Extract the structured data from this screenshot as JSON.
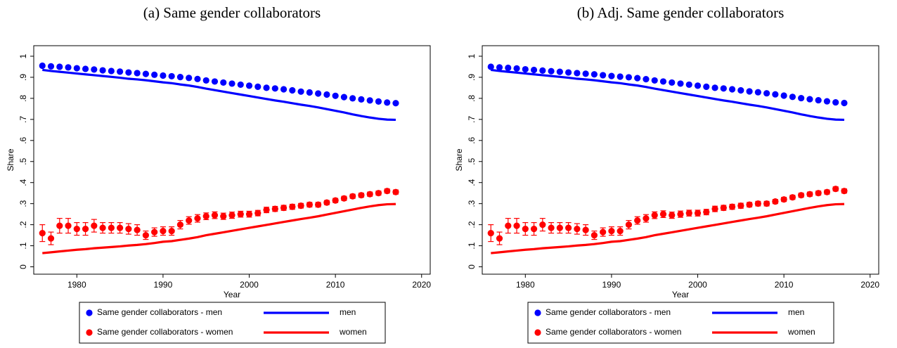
{
  "chart_data": [
    {
      "type": "scatter",
      "title": "(a) Same gender collaborators",
      "xlabel": "Year",
      "ylabel": "Share",
      "xlim": [
        1975,
        2021
      ],
      "ylim": [
        -0.035,
        1.05
      ],
      "xticks": [
        1980,
        1990,
        2000,
        2010,
        2020
      ],
      "yticks": [
        0,
        {
          "value": 0.1,
          "label": ".1"
        },
        {
          "value": 0.2,
          "label": ".2"
        },
        {
          "value": 0.3,
          "label": ".3"
        },
        {
          "value": 0.4,
          "label": ".4"
        },
        {
          "value": 0.5,
          "label": ".5"
        },
        {
          "value": 0.6,
          "label": ".6"
        },
        {
          "value": 0.7,
          "label": ".7"
        },
        {
          "value": 0.8,
          "label": ".8"
        },
        {
          "value": 0.9,
          "label": ".9"
        },
        1
      ],
      "x": [
        1976,
        1977,
        1978,
        1979,
        1980,
        1981,
        1982,
        1983,
        1984,
        1985,
        1986,
        1987,
        1988,
        1989,
        1990,
        1991,
        1992,
        1993,
        1994,
        1995,
        1996,
        1997,
        1998,
        1999,
        2000,
        2001,
        2002,
        2003,
        2004,
        2005,
        2006,
        2007,
        2008,
        2009,
        2010,
        2011,
        2012,
        2013,
        2014,
        2015,
        2016,
        2017
      ],
      "series": [
        {
          "name": "Same gender collaborators - men",
          "style": "dots",
          "color": "#0000ff",
          "values": [
            0.955,
            0.952,
            0.95,
            0.947,
            0.943,
            0.94,
            0.937,
            0.933,
            0.93,
            0.927,
            0.923,
            0.92,
            0.916,
            0.912,
            0.908,
            0.905,
            0.901,
            0.897,
            0.892,
            0.885,
            0.88,
            0.875,
            0.87,
            0.865,
            0.86,
            0.855,
            0.85,
            0.847,
            0.843,
            0.838,
            0.832,
            0.828,
            0.823,
            0.818,
            0.812,
            0.806,
            0.8,
            0.795,
            0.79,
            0.785,
            0.78,
            0.777
          ]
        },
        {
          "name": "men",
          "style": "line",
          "color": "#0000ff",
          "values": [
            0.935,
            0.93,
            0.926,
            0.922,
            0.918,
            0.914,
            0.91,
            0.906,
            0.902,
            0.898,
            0.893,
            0.89,
            0.886,
            0.881,
            0.876,
            0.872,
            0.866,
            0.861,
            0.854,
            0.846,
            0.839,
            0.832,
            0.825,
            0.818,
            0.811,
            0.804,
            0.797,
            0.79,
            0.784,
            0.777,
            0.77,
            0.764,
            0.757,
            0.749,
            0.741,
            0.733,
            0.724,
            0.716,
            0.709,
            0.703,
            0.699,
            0.698
          ]
        },
        {
          "name": "Same gender collaborators - women",
          "style": "dots",
          "color": "#ff0000",
          "values": [
            0.16,
            0.135,
            0.195,
            0.195,
            0.18,
            0.18,
            0.195,
            0.185,
            0.185,
            0.185,
            0.18,
            0.175,
            0.15,
            0.165,
            0.17,
            0.17,
            0.2,
            0.22,
            0.23,
            0.24,
            0.245,
            0.24,
            0.245,
            0.25,
            0.25,
            0.255,
            0.27,
            0.275,
            0.28,
            0.285,
            0.29,
            0.295,
            0.295,
            0.305,
            0.315,
            0.325,
            0.335,
            0.34,
            0.345,
            0.35,
            0.36,
            0.355
          ],
          "errors": [
            0.04,
            0.03,
            0.035,
            0.035,
            0.03,
            0.03,
            0.03,
            0.025,
            0.025,
            0.025,
            0.025,
            0.025,
            0.02,
            0.02,
            0.02,
            0.02,
            0.02,
            0.018,
            0.018,
            0.016,
            0.016,
            0.015,
            0.015,
            0.014,
            0.014,
            0.013,
            0.013,
            0.012,
            0.012,
            0.012,
            0.011,
            0.011,
            0.011,
            0.01,
            0.01,
            0.01,
            0.01,
            0.01,
            0.01,
            0.01,
            0.01,
            0.01
          ]
        },
        {
          "name": "women",
          "style": "line",
          "color": "#ff0000",
          "values": [
            0.065,
            0.069,
            0.073,
            0.077,
            0.081,
            0.084,
            0.088,
            0.091,
            0.094,
            0.097,
            0.101,
            0.104,
            0.108,
            0.113,
            0.119,
            0.122,
            0.128,
            0.134,
            0.141,
            0.15,
            0.157,
            0.164,
            0.171,
            0.178,
            0.185,
            0.192,
            0.199,
            0.206,
            0.213,
            0.22,
            0.227,
            0.233,
            0.24,
            0.248,
            0.256,
            0.264,
            0.272,
            0.28,
            0.287,
            0.293,
            0.297,
            0.298
          ]
        }
      ]
    },
    {
      "type": "scatter",
      "title": "(b) Adj. Same gender collaborators",
      "xlabel": "Year",
      "ylabel": "Share",
      "xlim": [
        1975,
        2021
      ],
      "ylim": [
        -0.035,
        1.05
      ],
      "xticks": [
        1980,
        1990,
        2000,
        2010,
        2020
      ],
      "yticks": [
        0,
        {
          "value": 0.1,
          "label": ".1"
        },
        {
          "value": 0.2,
          "label": ".2"
        },
        {
          "value": 0.3,
          "label": ".3"
        },
        {
          "value": 0.4,
          "label": ".4"
        },
        {
          "value": 0.5,
          "label": ".5"
        },
        {
          "value": 0.6,
          "label": ".6"
        },
        {
          "value": 0.7,
          "label": ".7"
        },
        {
          "value": 0.8,
          "label": ".8"
        },
        {
          "value": 0.9,
          "label": ".9"
        },
        1
      ],
      "x": [
        1976,
        1977,
        1978,
        1979,
        1980,
        1981,
        1982,
        1983,
        1984,
        1985,
        1986,
        1987,
        1988,
        1989,
        1990,
        1991,
        1992,
        1993,
        1994,
        1995,
        1996,
        1997,
        1998,
        1999,
        2000,
        2001,
        2002,
        2003,
        2004,
        2005,
        2006,
        2007,
        2008,
        2009,
        2010,
        2011,
        2012,
        2013,
        2014,
        2015,
        2016,
        2017
      ],
      "series": [
        {
          "name": "Same gender collaborators - men",
          "style": "dots",
          "color": "#0000ff",
          "values": [
            0.95,
            0.947,
            0.945,
            0.942,
            0.938,
            0.935,
            0.932,
            0.929,
            0.926,
            0.923,
            0.92,
            0.917,
            0.914,
            0.91,
            0.906,
            0.903,
            0.9,
            0.896,
            0.891,
            0.885,
            0.88,
            0.875,
            0.87,
            0.865,
            0.86,
            0.855,
            0.85,
            0.847,
            0.843,
            0.838,
            0.833,
            0.829,
            0.824,
            0.819,
            0.813,
            0.807,
            0.801,
            0.796,
            0.791,
            0.786,
            0.781,
            0.778
          ]
        },
        {
          "name": "men",
          "style": "line",
          "color": "#0000ff",
          "values": [
            0.935,
            0.93,
            0.926,
            0.922,
            0.918,
            0.914,
            0.91,
            0.906,
            0.902,
            0.898,
            0.893,
            0.89,
            0.886,
            0.881,
            0.876,
            0.872,
            0.866,
            0.861,
            0.854,
            0.846,
            0.839,
            0.832,
            0.825,
            0.818,
            0.811,
            0.804,
            0.797,
            0.79,
            0.784,
            0.777,
            0.77,
            0.764,
            0.757,
            0.749,
            0.741,
            0.733,
            0.724,
            0.716,
            0.709,
            0.703,
            0.699,
            0.698
          ]
        },
        {
          "name": "Same gender collaborators - women",
          "style": "dots",
          "color": "#ff0000",
          "values": [
            0.16,
            0.135,
            0.195,
            0.195,
            0.18,
            0.18,
            0.2,
            0.185,
            0.185,
            0.185,
            0.18,
            0.175,
            0.15,
            0.165,
            0.17,
            0.17,
            0.2,
            0.22,
            0.23,
            0.245,
            0.25,
            0.245,
            0.25,
            0.255,
            0.255,
            0.26,
            0.275,
            0.28,
            0.285,
            0.29,
            0.295,
            0.3,
            0.3,
            0.31,
            0.32,
            0.33,
            0.34,
            0.345,
            0.35,
            0.355,
            0.37,
            0.36
          ],
          "errors": [
            0.04,
            0.03,
            0.035,
            0.035,
            0.03,
            0.03,
            0.03,
            0.025,
            0.025,
            0.025,
            0.025,
            0.025,
            0.02,
            0.02,
            0.02,
            0.02,
            0.02,
            0.018,
            0.018,
            0.016,
            0.016,
            0.015,
            0.015,
            0.014,
            0.014,
            0.013,
            0.013,
            0.012,
            0.012,
            0.012,
            0.011,
            0.011,
            0.011,
            0.01,
            0.01,
            0.01,
            0.01,
            0.01,
            0.01,
            0.01,
            0.01,
            0.01
          ]
        },
        {
          "name": "women",
          "style": "line",
          "color": "#ff0000",
          "values": [
            0.065,
            0.069,
            0.073,
            0.077,
            0.081,
            0.084,
            0.088,
            0.091,
            0.094,
            0.097,
            0.101,
            0.104,
            0.108,
            0.113,
            0.119,
            0.122,
            0.128,
            0.134,
            0.141,
            0.15,
            0.157,
            0.164,
            0.171,
            0.178,
            0.185,
            0.192,
            0.199,
            0.206,
            0.213,
            0.22,
            0.227,
            0.233,
            0.24,
            0.248,
            0.256,
            0.264,
            0.272,
            0.28,
            0.287,
            0.293,
            0.297,
            0.298
          ]
        }
      ]
    }
  ]
}
